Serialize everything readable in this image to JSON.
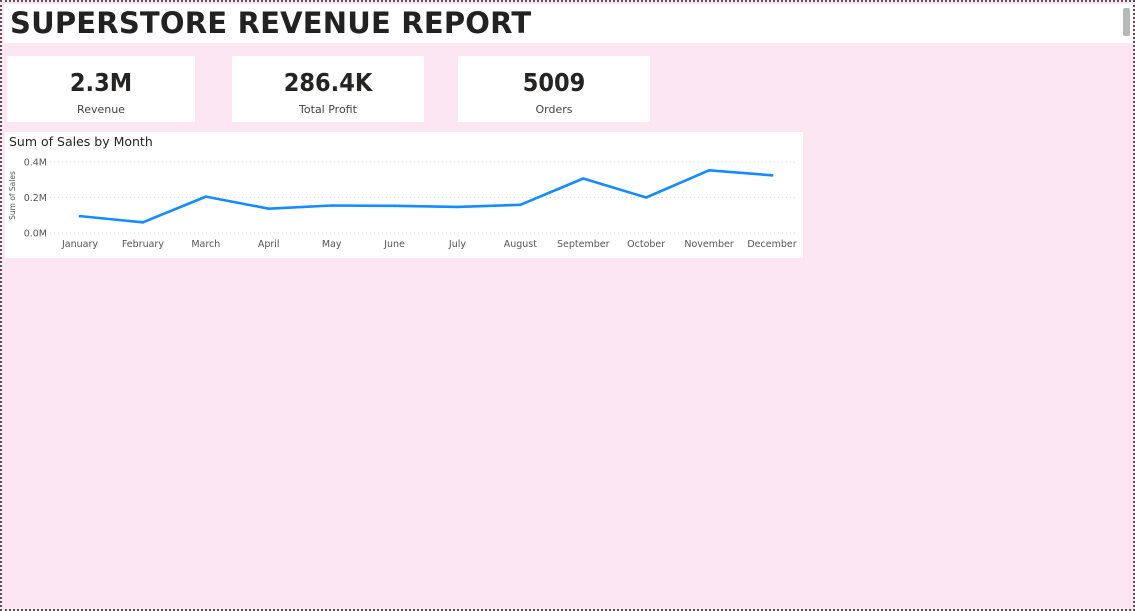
{
  "header": {
    "title": "SUPERSTORE REVENUE REPORT"
  },
  "kpis": [
    {
      "value": "2.3M",
      "label": "Revenue"
    },
    {
      "value": "286.4K",
      "label": "Total Profit"
    },
    {
      "value": "5009",
      "label": "Orders"
    }
  ],
  "chart_data": {
    "type": "line",
    "title": "Sum of Sales by Month",
    "xlabel": "",
    "ylabel": "Sum of Sales",
    "categories": [
      "January",
      "February",
      "March",
      "April",
      "May",
      "June",
      "July",
      "August",
      "September",
      "October",
      "November",
      "December"
    ],
    "series": [
      {
        "values": [
          0.095,
          0.06,
          0.205,
          0.137,
          0.155,
          0.153,
          0.147,
          0.159,
          0.307,
          0.2,
          0.353,
          0.325
        ]
      }
    ],
    "ylim": [
      0,
      0.4
    ],
    "yticks": [
      0,
      0.2,
      0.4
    ],
    "ytick_labels": [
      "0.0M",
      "0.2M",
      "0.4M"
    ],
    "grid": true,
    "line_color": "#118dff"
  },
  "colors": {
    "page_background": "#fce6f1",
    "card_background": "#ffffff",
    "text": "#252423",
    "line": "#118dff"
  }
}
